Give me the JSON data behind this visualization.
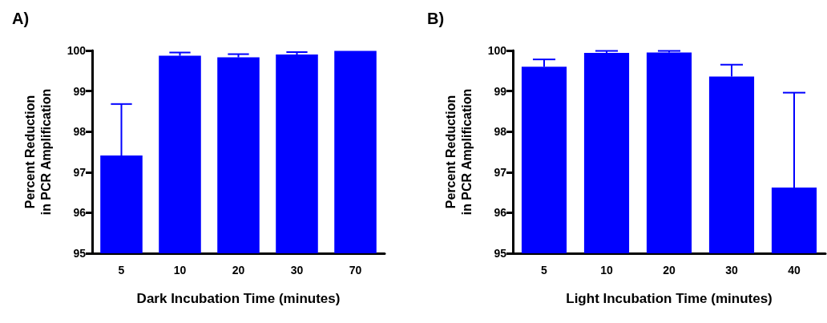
{
  "chart_data": [
    {
      "type": "bar",
      "title": "A)",
      "xlabel": "Dark Incubation Time (minutes)",
      "ylabel": "Percent Reduction\nin PCR Amplification",
      "categories": [
        "5",
        "10",
        "20",
        "30",
        "70"
      ],
      "values": [
        97.41,
        99.87,
        99.83,
        99.9,
        99.99
      ],
      "errors": [
        [
          97.41,
          98.68
        ],
        [
          99.87,
          99.95
        ],
        [
          99.83,
          99.91
        ],
        [
          99.9,
          99.96
        ],
        null
      ],
      "color": "#0000ff",
      "ylim": [
        95,
        100
      ],
      "yticks": [
        95,
        96,
        97,
        98,
        99,
        100
      ],
      "grid": false
    },
    {
      "type": "bar",
      "title": "B)",
      "xlabel": "Light Incubation Time (minutes)",
      "ylabel": "Percent Reduction\nin PCR Amplification",
      "categories": [
        "5",
        "10",
        "20",
        "30",
        "40"
      ],
      "values": [
        99.6,
        99.94,
        99.95,
        99.36,
        96.62
      ],
      "errors": [
        [
          99.6,
          99.78
        ],
        [
          99.94,
          99.99
        ],
        [
          99.95,
          99.99
        ],
        [
          99.36,
          99.65
        ],
        [
          96.62,
          98.96
        ]
      ],
      "color": "#0000ff",
      "ylim": [
        95,
        100
      ],
      "yticks": [
        95,
        96,
        97,
        98,
        99,
        100
      ],
      "grid": false
    }
  ]
}
